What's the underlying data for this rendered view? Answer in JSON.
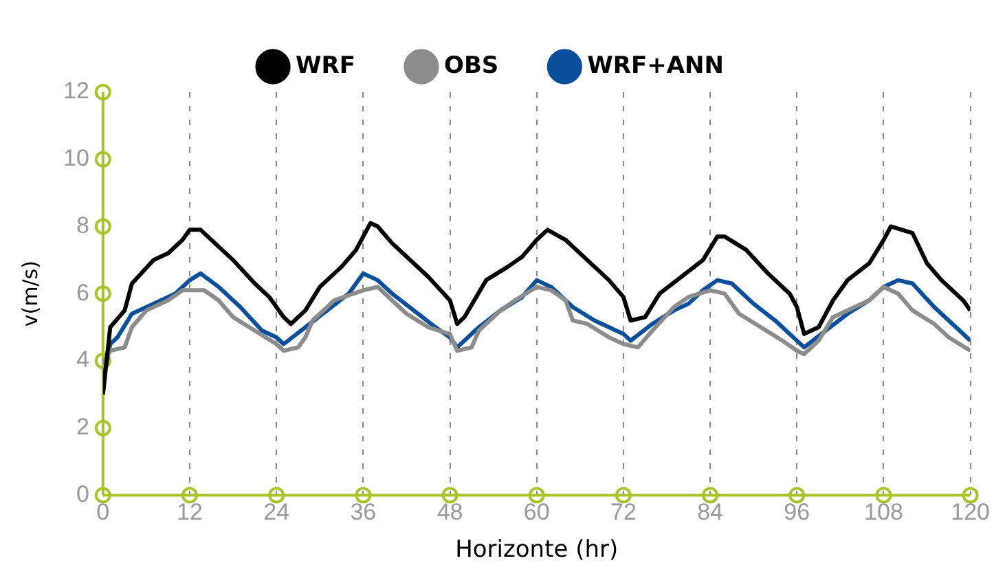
{
  "chart_data": {
    "type": "line",
    "xlabel": "Horizonte (hr)",
    "ylabel": "v(m/s)",
    "xlim": [
      0,
      120
    ],
    "xticks": [
      0,
      12,
      24,
      36,
      48,
      60,
      72,
      84,
      96,
      108,
      120
    ],
    "ylim": [
      0,
      12
    ],
    "yticks": [
      0,
      2,
      4,
      6,
      8,
      10,
      12
    ],
    "grid": "x",
    "legend": "top",
    "marker": "none",
    "line_style": "solid",
    "series": [
      {
        "name": "WRF",
        "color": "#000000",
        "x": [
          0,
          1,
          3,
          4,
          7,
          9,
          11,
          12,
          13.5,
          18,
          21,
          23,
          24,
          25,
          26,
          28,
          30,
          33,
          35,
          37,
          38,
          40,
          45,
          48,
          49,
          50,
          53,
          56,
          58,
          60,
          61.5,
          64,
          67,
          70,
          72,
          73,
          75,
          77,
          80,
          83,
          85,
          86,
          89,
          92,
          95,
          96,
          97,
          99,
          101,
          103,
          106,
          108,
          109,
          112,
          114,
          116,
          119,
          120
        ],
        "values": [
          3.0,
          5.0,
          5.5,
          6.3,
          7.0,
          7.2,
          7.6,
          7.9,
          7.9,
          7.0,
          6.3,
          5.9,
          5.6,
          5.3,
          5.1,
          5.5,
          6.2,
          6.8,
          7.3,
          8.1,
          8.0,
          7.5,
          6.5,
          5.8,
          5.1,
          5.3,
          6.4,
          6.8,
          7.1,
          7.6,
          7.9,
          7.6,
          7.0,
          6.4,
          5.9,
          5.2,
          5.3,
          6.0,
          6.5,
          7.0,
          7.7,
          7.7,
          7.3,
          6.6,
          6.0,
          5.6,
          4.8,
          5.0,
          5.8,
          6.4,
          6.9,
          7.6,
          8.0,
          7.8,
          6.9,
          6.4,
          5.8,
          5.5
        ]
      },
      {
        "name": "OBS",
        "color": "#8c8c8c",
        "x": [
          0,
          1,
          3,
          4,
          6,
          9,
          11,
          14,
          16,
          18,
          21,
          24,
          25,
          27,
          28,
          29,
          32,
          36,
          38,
          40,
          42,
          45,
          48,
          49,
          51,
          52,
          55,
          57,
          60,
          62,
          64,
          65,
          67,
          70,
          72,
          74,
          76,
          79,
          81,
          84,
          86,
          88,
          91,
          94,
          96,
          97,
          99,
          101,
          104,
          106,
          108,
          110,
          112,
          115,
          117,
          120
        ],
        "values": [
          3.9,
          4.3,
          4.4,
          5.0,
          5.5,
          5.8,
          6.1,
          6.1,
          5.8,
          5.3,
          4.9,
          4.5,
          4.3,
          4.4,
          4.7,
          5.2,
          5.8,
          6.1,
          6.2,
          5.8,
          5.4,
          5.0,
          4.8,
          4.3,
          4.4,
          4.9,
          5.5,
          5.8,
          6.2,
          6.1,
          5.8,
          5.2,
          5.1,
          4.7,
          4.5,
          4.4,
          4.9,
          5.6,
          5.9,
          6.1,
          6.0,
          5.4,
          5.0,
          4.6,
          4.3,
          4.2,
          4.6,
          5.3,
          5.6,
          5.8,
          6.2,
          6.0,
          5.5,
          5.1,
          4.7,
          4.3
        ]
      },
      {
        "name": "WRF+ANN",
        "color": "#0a4f9c",
        "x": [
          0,
          1,
          2,
          4,
          7,
          10,
          12,
          13.5,
          16,
          19,
          22,
          24,
          25,
          28,
          31,
          34,
          36,
          38,
          40,
          43,
          46,
          48,
          49,
          52,
          55,
          58,
          60,
          62,
          65,
          68,
          71,
          72,
          73,
          76,
          79,
          81,
          83,
          85,
          87,
          90,
          93,
          96,
          97,
          100,
          103,
          106,
          108,
          110,
          112,
          115,
          118,
          120
        ],
        "values": [
          3.4,
          4.5,
          4.7,
          5.4,
          5.7,
          6.0,
          6.4,
          6.6,
          6.2,
          5.6,
          4.9,
          4.7,
          4.5,
          5.0,
          5.5,
          6.0,
          6.6,
          6.4,
          6.0,
          5.5,
          5.0,
          4.7,
          4.4,
          5.0,
          5.5,
          5.9,
          6.4,
          6.2,
          5.6,
          5.2,
          4.9,
          4.8,
          4.6,
          5.1,
          5.5,
          5.7,
          6.1,
          6.4,
          6.3,
          5.7,
          5.2,
          4.6,
          4.4,
          4.9,
          5.4,
          5.8,
          6.2,
          6.4,
          6.3,
          5.6,
          5.0,
          4.6
        ]
      }
    ]
  }
}
